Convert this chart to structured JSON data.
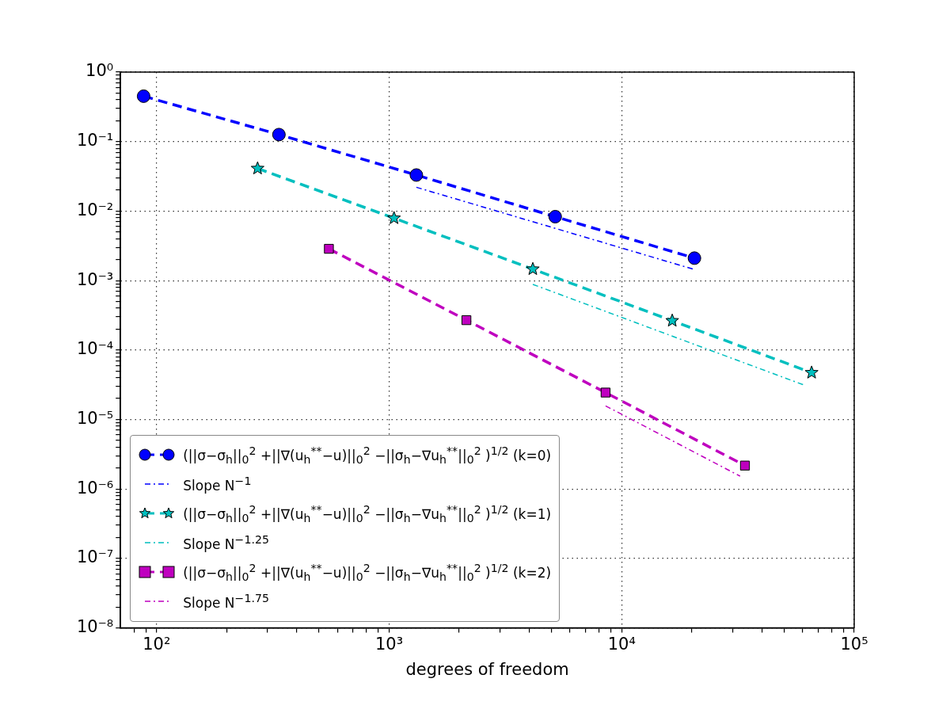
{
  "chart_data": {
    "type": "line",
    "xlabel": "degrees of freedom",
    "log": "xy",
    "grid": true,
    "legend": "bottom left",
    "xlim": [
      70,
      100000
    ],
    "ylim": [
      1e-08,
      1
    ],
    "xticks": [
      {
        "value": 80,
        "label": null
      },
      {
        "value": 90,
        "label": null
      },
      {
        "value": 100,
        "label": "10²"
      },
      {
        "value": 200,
        "label": null
      },
      {
        "value": 300,
        "label": null
      },
      {
        "value": 400,
        "label": null
      },
      {
        "value": 500,
        "label": null
      },
      {
        "value": 600,
        "label": null
      },
      {
        "value": 700,
        "label": null
      },
      {
        "value": 800,
        "label": null
      },
      {
        "value": 900,
        "label": null
      },
      {
        "value": 1000,
        "label": "10³"
      },
      {
        "value": 2000,
        "label": null
      },
      {
        "value": 3000,
        "label": null
      },
      {
        "value": 4000,
        "label": null
      },
      {
        "value": 5000,
        "label": null
      },
      {
        "value": 6000,
        "label": null
      },
      {
        "value": 7000,
        "label": null
      },
      {
        "value": 8000,
        "label": null
      },
      {
        "value": 9000,
        "label": null
      },
      {
        "value": 10000,
        "label": "10⁴"
      },
      {
        "value": 20000,
        "label": null
      },
      {
        "value": 30000,
        "label": null
      },
      {
        "value": 40000,
        "label": null
      },
      {
        "value": 50000,
        "label": null
      },
      {
        "value": 60000,
        "label": null
      },
      {
        "value": 70000,
        "label": null
      },
      {
        "value": 80000,
        "label": null
      },
      {
        "value": 90000,
        "label": null
      },
      {
        "value": 100000,
        "label": "10⁵"
      }
    ],
    "yticks": [
      {
        "value": 1e-08,
        "label": "10⁻⁸"
      },
      {
        "value": 2e-08,
        "label": null
      },
      {
        "value": 3e-08,
        "label": null
      },
      {
        "value": 4e-08,
        "label": null
      },
      {
        "value": 5e-08,
        "label": null
      },
      {
        "value": 6e-08,
        "label": null
      },
      {
        "value": 7e-08,
        "label": null
      },
      {
        "value": 8e-08,
        "label": null
      },
      {
        "value": 9e-08,
        "label": null
      },
      {
        "value": 1e-07,
        "label": "10⁻⁷"
      },
      {
        "value": 2e-07,
        "label": null
      },
      {
        "value": 3e-07,
        "label": null
      },
      {
        "value": 4e-07,
        "label": null
      },
      {
        "value": 5e-07,
        "label": null
      },
      {
        "value": 6e-07,
        "label": null
      },
      {
        "value": 7e-07,
        "label": null
      },
      {
        "value": 8e-07,
        "label": null
      },
      {
        "value": 9e-07,
        "label": null
      },
      {
        "value": 1e-06,
        "label": "10⁻⁶"
      },
      {
        "value": 2e-06,
        "label": null
      },
      {
        "value": 3e-06,
        "label": null
      },
      {
        "value": 4e-06,
        "label": null
      },
      {
        "value": 5e-06,
        "label": null
      },
      {
        "value": 6e-06,
        "label": null
      },
      {
        "value": 7e-06,
        "label": null
      },
      {
        "value": 8e-06,
        "label": null
      },
      {
        "value": 9e-06,
        "label": null
      },
      {
        "value": 1e-05,
        "label": "10⁻⁵"
      },
      {
        "value": 2e-05,
        "label": null
      },
      {
        "value": 3e-05,
        "label": null
      },
      {
        "value": 4e-05,
        "label": null
      },
      {
        "value": 5e-05,
        "label": null
      },
      {
        "value": 6e-05,
        "label": null
      },
      {
        "value": 7e-05,
        "label": null
      },
      {
        "value": 8e-05,
        "label": null
      },
      {
        "value": 9e-05,
        "label": null
      },
      {
        "value": 0.0001,
        "label": "10⁻⁴"
      },
      {
        "value": 0.0002,
        "label": null
      },
      {
        "value": 0.0003,
        "label": null
      },
      {
        "value": 0.0004,
        "label": null
      },
      {
        "value": 0.0005,
        "label": null
      },
      {
        "value": 0.0006,
        "label": null
      },
      {
        "value": 0.0007,
        "label": null
      },
      {
        "value": 0.0008,
        "label": null
      },
      {
        "value": 0.0009,
        "label": null
      },
      {
        "value": 0.001,
        "label": "10⁻³"
      },
      {
        "value": 0.002,
        "label": null
      },
      {
        "value": 0.003,
        "label": null
      },
      {
        "value": 0.004,
        "label": null
      },
      {
        "value": 0.005,
        "label": null
      },
      {
        "value": 0.006,
        "label": null
      },
      {
        "value": 0.007,
        "label": null
      },
      {
        "value": 0.008,
        "label": null
      },
      {
        "value": 0.009,
        "label": null
      },
      {
        "value": 0.01,
        "label": "10⁻²"
      },
      {
        "value": 0.02,
        "label": null
      },
      {
        "value": 0.03,
        "label": null
      },
      {
        "value": 0.04,
        "label": null
      },
      {
        "value": 0.05,
        "label": null
      },
      {
        "value": 0.06,
        "label": null
      },
      {
        "value": 0.07,
        "label": null
      },
      {
        "value": 0.08,
        "label": null
      },
      {
        "value": 0.09,
        "label": null
      },
      {
        "value": 0.1,
        "label": "10⁻¹"
      },
      {
        "value": 0.2,
        "label": null
      },
      {
        "value": 0.3,
        "label": null
      },
      {
        "value": 0.4,
        "label": null
      },
      {
        "value": 0.5,
        "label": null
      },
      {
        "value": 0.6,
        "label": null
      },
      {
        "value": 0.7,
        "label": null
      },
      {
        "value": 0.8,
        "label": null
      },
      {
        "value": 0.9,
        "label": null
      },
      {
        "value": 1,
        "label": "10⁰"
      }
    ],
    "series": [
      {
        "name": "(||σ−σ$_{h}$||$_{0}$$^{2}$ +||∇(u$_{h}$$^{**}$−u)||$_{0}$$^{2}$ −||σ$_{h}$−∇u$_{h}$$^{**}$||$_{0}$$^{2}$ )$^{1/2}$ (k=0)",
        "color": "#0000ff",
        "marker": "circle",
        "line_style": "dashed",
        "x": [
          88,
          336,
          1310,
          5180,
          20560
        ],
        "values": [
          0.45,
          0.126,
          0.033,
          0.0083,
          0.0021
        ]
      },
      {
        "name": "Slope N$^{−1}$",
        "color": "#0000ff",
        "marker": "none",
        "line_style": "dashdot",
        "x": [
          1310,
          20560
        ],
        "values": [
          0.022,
          0.00144
        ]
      },
      {
        "name": "(||σ−σ$_{h}$||$_{0}$$^{2}$ +||∇(u$_{h}$$^{**}$−u)||$_{0}$$^{2}$ −||σ$_{h}$−∇u$_{h}$$^{**}$||$_{0}$$^{2}$ )$^{1/2}$ (k=1)",
        "color": "#00bfbf",
        "marker": "star",
        "line_style": "dashed",
        "x": [
          272,
          1050,
          4150,
          16500,
          65600
        ],
        "values": [
          0.041,
          0.0079,
          0.00146,
          0.000264,
          4.72e-05
        ]
      },
      {
        "name": "Slope N$^{−1.25}$",
        "color": "#00bfbf",
        "marker": "none",
        "line_style": "dashdot",
        "x": [
          4150,
          61000
        ],
        "values": [
          0.00088,
          3.12e-05
        ]
      },
      {
        "name": "(||σ−σ$_{h}$||$_{0}$$^{2}$ +||∇(u$_{h}$$^{**}$−u)||$_{0}$$^{2}$ −||σ$_{h}$−∇u$_{h}$$^{**}$||$_{0}$$^{2}$ )$^{1/2}$ (k=2)",
        "color": "#bf00bf",
        "marker": "square",
        "line_style": "dashed",
        "x": [
          551,
          2150,
          8530,
          33900
        ],
        "values": [
          0.00286,
          0.000269,
          2.44e-05,
          2.17e-06
        ]
      },
      {
        "name": "Slope N$^{−1.75}$",
        "color": "#bf00bf",
        "marker": "none",
        "line_style": "dashdot",
        "x": [
          8530,
          32300
        ],
        "values": [
          1.57e-05,
          1.53e-06
        ]
      }
    ]
  }
}
